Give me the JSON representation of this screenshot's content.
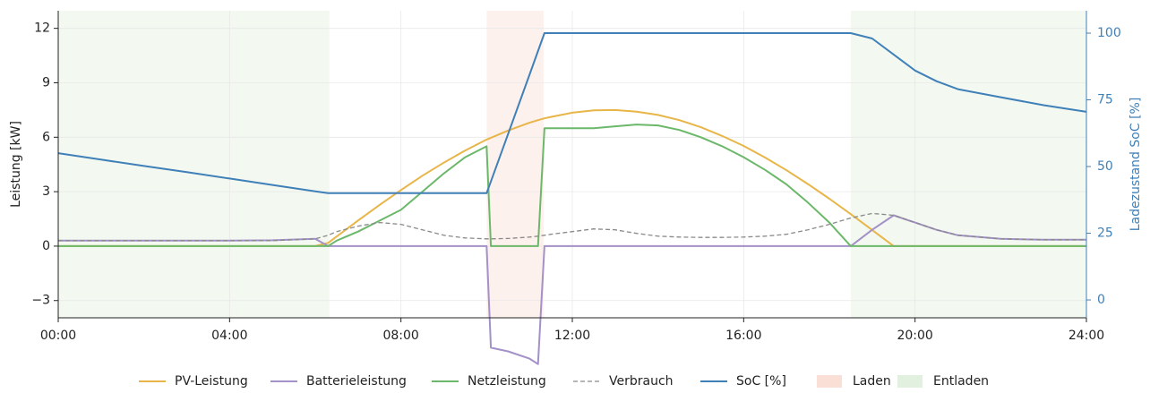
{
  "chart_data": {
    "type": "line",
    "ylabel": "Leistung [kW]",
    "y2label": "Ladezustand SoC [%]",
    "x": [
      0,
      1,
      2,
      3,
      4,
      5,
      6,
      6.3,
      6.5,
      7,
      7.5,
      8,
      8.5,
      9,
      9.5,
      10,
      10.1,
      10.5,
      11,
      11.2,
      11.35,
      11.5,
      12,
      12.5,
      13,
      13.5,
      14,
      14.5,
      15,
      15.5,
      16,
      16.5,
      17,
      17.5,
      18,
      18.5,
      19,
      19.5,
      20,
      20.5,
      21,
      22,
      23,
      24
    ],
    "xlim": [
      0,
      24
    ],
    "xticks": [
      {
        "value": 0,
        "label": "00:00"
      },
      {
        "value": 4,
        "label": "04:00"
      },
      {
        "value": 8,
        "label": "08:00"
      },
      {
        "value": 12,
        "label": "12:00"
      },
      {
        "value": 16,
        "label": "16:00"
      },
      {
        "value": 20,
        "label": "20:00"
      },
      {
        "value": 24,
        "label": "24:00"
      }
    ],
    "ylim": [
      -3.95,
      12.97
    ],
    "yticks": [
      {
        "value": -3,
        "label": "−3"
      },
      0,
      3,
      6,
      9,
      12
    ],
    "y2lim": [
      -6.7,
      108.4
    ],
    "y2ticks": [
      0,
      25,
      50,
      75,
      100
    ],
    "grid": true,
    "legend": "bottom",
    "series": [
      {
        "name": "PV-Leistung",
        "color": "#e8b548",
        "style": "solid",
        "values": [
          0,
          0,
          0,
          0,
          0,
          0,
          0,
          0.18,
          0.53,
          1.41,
          2.27,
          3.09,
          3.88,
          4.6,
          5.27,
          5.87,
          5.97,
          6.37,
          6.8,
          6.94,
          7.04,
          7.12,
          7.35,
          7.48,
          7.5,
          7.41,
          7.23,
          6.94,
          6.55,
          6.07,
          5.52,
          4.88,
          4.18,
          3.42,
          2.61,
          1.76,
          0.89,
          0,
          0,
          0,
          0,
          0,
          0,
          0
        ]
      },
      {
        "name": "Batterieleistung",
        "color": "#a391c8",
        "style": "solid",
        "values": [
          0.3,
          0.3,
          0.3,
          0.3,
          0.3,
          0.32,
          0.4,
          0,
          0,
          0,
          0,
          0,
          0,
          0,
          0,
          0,
          -5.6,
          -5.8,
          -6.2,
          -6.5,
          0,
          0,
          0,
          0,
          0,
          0,
          0,
          0,
          0,
          0,
          0,
          0,
          0,
          0,
          0,
          0,
          0.9,
          1.7,
          1.3,
          0.9,
          0.6,
          0.4,
          0.35,
          0.35
        ]
      },
      {
        "name": "Netzleistung",
        "color": "#6cb86a",
        "style": "solid",
        "values": [
          0,
          0,
          0,
          0,
          0,
          0,
          0,
          0,
          0.3,
          0.8,
          1.4,
          2.0,
          3.0,
          4.0,
          4.9,
          5.5,
          0,
          0,
          0,
          0,
          6.5,
          6.5,
          6.5,
          6.5,
          6.6,
          6.7,
          6.65,
          6.4,
          6.0,
          5.5,
          4.9,
          4.2,
          3.4,
          2.4,
          1.3,
          0,
          0,
          0,
          0,
          0,
          0,
          0,
          0,
          0
        ]
      },
      {
        "name": "Verbrauch",
        "color": "#8a8a8a",
        "style": "dashed",
        "values": [
          0.3,
          0.3,
          0.3,
          0.3,
          0.3,
          0.3,
          0.4,
          0.6,
          0.8,
          1.1,
          1.3,
          1.2,
          0.9,
          0.6,
          0.45,
          0.4,
          0.4,
          0.42,
          0.5,
          0.55,
          0.6,
          0.65,
          0.8,
          0.95,
          0.9,
          0.7,
          0.55,
          0.5,
          0.48,
          0.48,
          0.5,
          0.55,
          0.65,
          0.9,
          1.2,
          1.55,
          1.8,
          1.7,
          1.3,
          0.9,
          0.6,
          0.4,
          0.35,
          0.35
        ]
      },
      {
        "name": "SoC [%]",
        "color": "#3f80b8",
        "style": "solid",
        "axis": "y2",
        "values": [
          55,
          52.6,
          50.2,
          47.9,
          45.5,
          43.1,
          40.7,
          40,
          40,
          40,
          40,
          40,
          40,
          40,
          40,
          40,
          44.4,
          62.2,
          84.4,
          93.3,
          100,
          100,
          100,
          100,
          100,
          100,
          100,
          100,
          100,
          100,
          100,
          100,
          100,
          100,
          100,
          100,
          98,
          92,
          86,
          82,
          79,
          76,
          73,
          70.5
        ]
      }
    ],
    "spans": [
      {
        "name": "Laden",
        "color": "#f6c9bd",
        "ranges": [
          [
            10,
            11.33
          ]
        ]
      },
      {
        "name": "Entladen",
        "color": "#cfe6c9",
        "ranges": [
          [
            0,
            6.33
          ],
          [
            18.5,
            24
          ]
        ]
      }
    ]
  }
}
